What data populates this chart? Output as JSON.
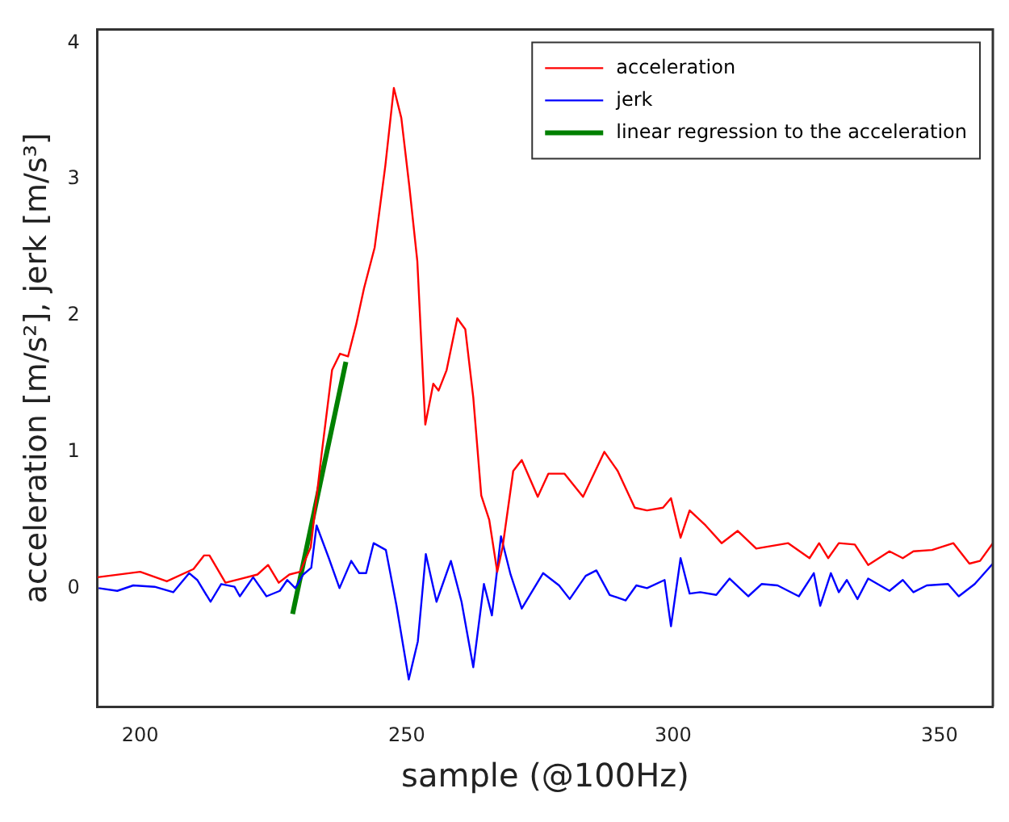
{
  "chart_data": {
    "type": "line",
    "xlabel": "sample (@100Hz)",
    "ylabel": "acceleration [m/s²], jerk [m/s³]",
    "xlim": [
      192,
      360
    ],
    "ylim": [
      -0.87,
      4.1
    ],
    "xticks": [
      200,
      250,
      300,
      350
    ],
    "yticks": [
      0,
      1,
      2,
      3,
      4
    ],
    "grid": false,
    "legend": "top right",
    "marker": "none",
    "line_style": "solid",
    "series": [
      {
        "name": "acceleration",
        "color": "#ff0000",
        "x": [
          192,
          200,
          205,
          210,
          212,
          213,
          216,
          219,
          222,
          224,
          226,
          228,
          230,
          232,
          234,
          236,
          237.5,
          239,
          240.5,
          242,
          244,
          246,
          247.6,
          249,
          250.5,
          252,
          253.5,
          255,
          256,
          257.5,
          259.5,
          261,
          262.5,
          264,
          265.5,
          267,
          268,
          270,
          271.6,
          274.6,
          276.6,
          279.6,
          283.1,
          287.1,
          289.6,
          292.8,
          295.1,
          298.1,
          299.6,
          301.4,
          303.1,
          306.1,
          309.1,
          312.1,
          315.6,
          321.6,
          325.6,
          327.4,
          329.1,
          331.1,
          334.1,
          336.6,
          340.6,
          343.1,
          345.1,
          348.6,
          352.6,
          355.6,
          357.6,
          360
        ],
        "values": [
          0.08,
          0.12,
          0.05,
          0.14,
          0.24,
          0.24,
          0.04,
          0.07,
          0.1,
          0.17,
          0.04,
          0.1,
          0.12,
          0.3,
          0.97,
          1.6,
          1.72,
          1.7,
          1.93,
          2.2,
          2.5,
          3.1,
          3.67,
          3.45,
          2.95,
          2.4,
          1.2,
          1.5,
          1.45,
          1.6,
          1.98,
          1.9,
          1.4,
          0.68,
          0.5,
          0.12,
          0.3,
          0.86,
          0.94,
          0.67,
          0.84,
          0.84,
          0.67,
          1.0,
          0.86,
          0.59,
          0.57,
          0.59,
          0.66,
          0.37,
          0.57,
          0.46,
          0.33,
          0.42,
          0.29,
          0.33,
          0.22,
          0.33,
          0.22,
          0.33,
          0.32,
          0.17,
          0.27,
          0.22,
          0.27,
          0.28,
          0.33,
          0.18,
          0.2,
          0.33
        ]
      },
      {
        "name": "jerk",
        "color": "#0000ff",
        "x": [
          192.2,
          195.7,
          198.7,
          202.7,
          206.2,
          209.2,
          210.7,
          213.2,
          215.2,
          217.7,
          218.7,
          221.2,
          223.7,
          226.2,
          227.6,
          229.1,
          230.6,
          232.1,
          233.1,
          235.4,
          237.4,
          239.6,
          241.1,
          242.4,
          243.8,
          246.1,
          248.1,
          250.4,
          252.1,
          253.6,
          255.6,
          258.3,
          260.3,
          262.5,
          264.5,
          266,
          267.7,
          269.5,
          271.6,
          275.6,
          278.6,
          280.6,
          283.6,
          285.6,
          288.1,
          291.1,
          293.1,
          295.1,
          298.4,
          299.6,
          301.4,
          303.1,
          305.1,
          308.1,
          310.6,
          314.1,
          316.6,
          319.6,
          323.6,
          326.4,
          327.6,
          329.6,
          331.1,
          332.6,
          334.6,
          336.6,
          340.6,
          343.1,
          345.1,
          347.6,
          351.6,
          353.6,
          356.6,
          360
        ],
        "values": [
          0,
          -0.02,
          0.02,
          0.01,
          -0.03,
          0.11,
          0.06,
          -0.1,
          0.03,
          0.01,
          -0.06,
          0.08,
          -0.06,
          -0.02,
          0.06,
          0,
          0.1,
          0.15,
          0.46,
          0.22,
          0,
          0.2,
          0.11,
          0.11,
          0.33,
          0.28,
          -0.13,
          -0.67,
          -0.39,
          0.25,
          -0.1,
          0.2,
          -0.1,
          -0.58,
          0.03,
          -0.2,
          0.38,
          0.1,
          -0.15,
          0.11,
          0.02,
          -0.08,
          0.09,
          0.13,
          -0.05,
          -0.09,
          0.02,
          0,
          0.06,
          -0.28,
          0.22,
          -0.04,
          -0.03,
          -0.05,
          0.07,
          -0.06,
          0.03,
          0.02,
          -0.06,
          0.11,
          -0.13,
          0.11,
          -0.03,
          0.06,
          -0.08,
          0.07,
          -0.02,
          0.06,
          -0.03,
          0.02,
          0.03,
          -0.06,
          0.03,
          0.18
        ]
      },
      {
        "name": "linear regression to the acceleration",
        "color": "#008000",
        "x": [
          228.6,
          238.6
        ],
        "values": [
          -0.19,
          1.66
        ]
      }
    ]
  }
}
